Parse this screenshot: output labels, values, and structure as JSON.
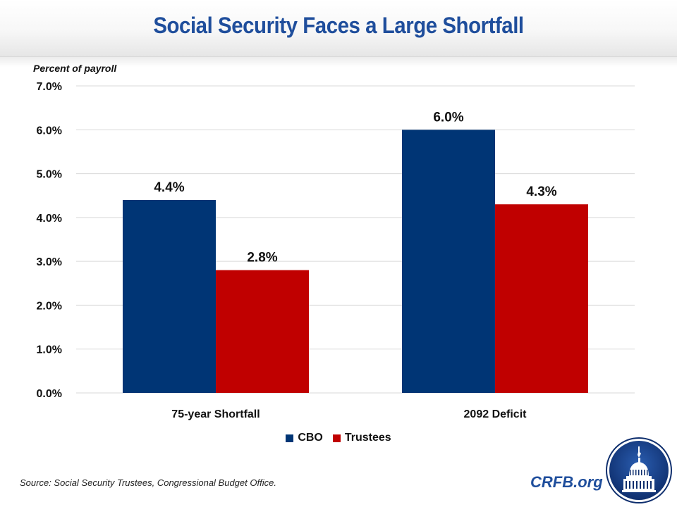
{
  "header": {
    "title": "Social Security Faces a Large Shortfall"
  },
  "footer": {
    "source": "Source: Social Security Trustees, Congressional Budget Office.",
    "brand": "CRFB.org",
    "logo_icon": "capitol-dome-seal-icon"
  },
  "colors": {
    "title": "#1f4e9c",
    "cbo": "#003575",
    "trustees": "#c00000",
    "grid": "#d9d9d9"
  },
  "chart_data": {
    "type": "bar",
    "title": "Social Security Faces a Large Shortfall",
    "ylabel": "Percent of payroll",
    "xlabel": "",
    "categories": [
      "75-year Shortfall",
      "2092 Deficit"
    ],
    "series": [
      {
        "name": "CBO",
        "color": "#003575",
        "values": [
          4.4,
          6.0
        ],
        "labels": [
          "4.4%",
          "6.0%"
        ]
      },
      {
        "name": "Trustees",
        "color": "#c00000",
        "values": [
          2.8,
          4.3
        ],
        "labels": [
          "2.8%",
          "4.3%"
        ]
      }
    ],
    "ylim": [
      0,
      7
    ],
    "yticks": [
      0,
      1,
      2,
      3,
      4,
      5,
      6,
      7
    ],
    "ytick_labels": [
      "0.0%",
      "1.0%",
      "2.0%",
      "3.0%",
      "4.0%",
      "5.0%",
      "6.0%",
      "7.0%"
    ],
    "grid": true,
    "legend": {
      "position": "bottom",
      "entries": [
        "CBO",
        "Trustees"
      ]
    }
  }
}
